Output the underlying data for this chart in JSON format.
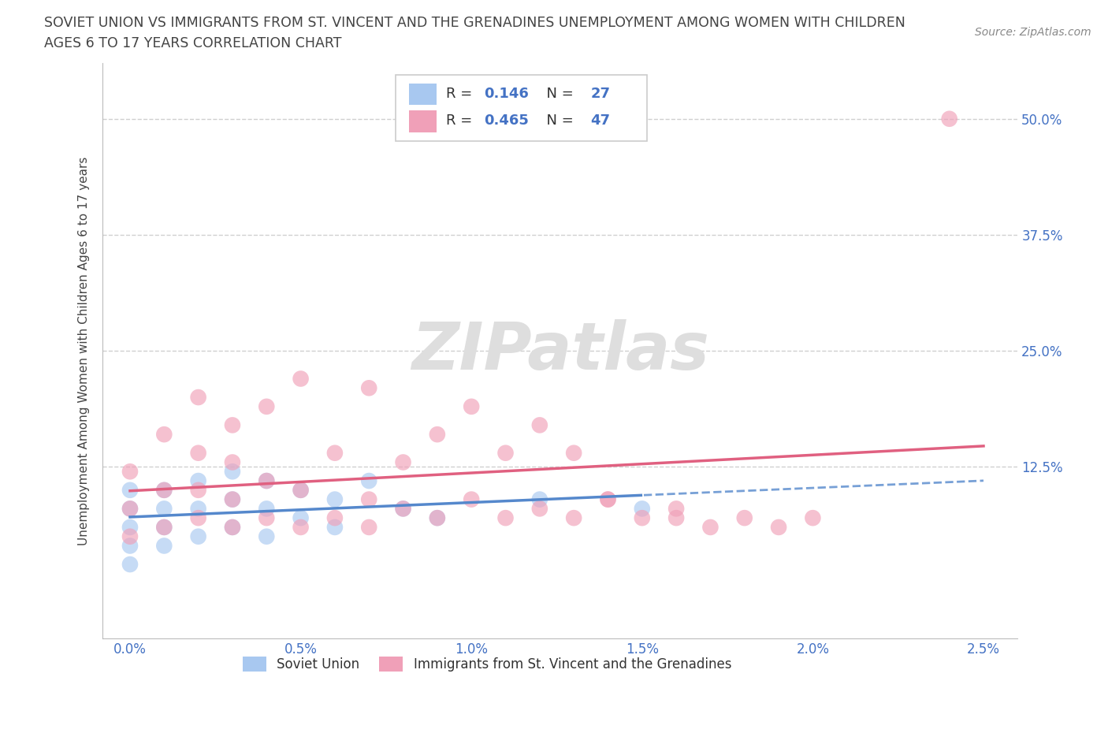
{
  "title_line1": "SOVIET UNION VS IMMIGRANTS FROM ST. VINCENT AND THE GRENADINES UNEMPLOYMENT AMONG WOMEN WITH CHILDREN",
  "title_line2": "AGES 6 TO 17 YEARS CORRELATION CHART",
  "source": "Source: ZipAtlas.com",
  "ylabel": "Unemployment Among Women with Children Ages 6 to 17 years",
  "series": [
    {
      "name": "Soviet Union",
      "R": 0.146,
      "N": 27,
      "color": "#a8c8f0",
      "line_style": "solid_then_dashed",
      "line_color": "#5588cc",
      "x": [
        0.0,
        0.0,
        0.0,
        0.0,
        0.0,
        0.001,
        0.001,
        0.001,
        0.001,
        0.002,
        0.002,
        0.002,
        0.003,
        0.003,
        0.003,
        0.004,
        0.004,
        0.004,
        0.005,
        0.005,
        0.006,
        0.006,
        0.007,
        0.008,
        0.009,
        0.012,
        0.015
      ],
      "y": [
        0.02,
        0.04,
        0.06,
        0.08,
        0.1,
        0.04,
        0.06,
        0.08,
        0.1,
        0.05,
        0.08,
        0.11,
        0.06,
        0.09,
        0.12,
        0.05,
        0.08,
        0.11,
        0.07,
        0.1,
        0.06,
        0.09,
        0.11,
        0.08,
        0.07,
        0.09,
        0.08
      ]
    },
    {
      "name": "Immigrants from St. Vincent and the Grenadines",
      "R": 0.465,
      "N": 47,
      "color": "#f0a0b8",
      "line_style": "solid",
      "line_color": "#e06080",
      "x": [
        0.0,
        0.0,
        0.0,
        0.001,
        0.001,
        0.001,
        0.002,
        0.002,
        0.002,
        0.002,
        0.003,
        0.003,
        0.003,
        0.003,
        0.004,
        0.004,
        0.004,
        0.005,
        0.005,
        0.005,
        0.006,
        0.006,
        0.007,
        0.007,
        0.007,
        0.008,
        0.008,
        0.009,
        0.009,
        0.01,
        0.01,
        0.011,
        0.011,
        0.012,
        0.012,
        0.013,
        0.013,
        0.014,
        0.014,
        0.015,
        0.016,
        0.016,
        0.017,
        0.018,
        0.019,
        0.02,
        0.024
      ],
      "y": [
        0.05,
        0.08,
        0.12,
        0.06,
        0.1,
        0.16,
        0.07,
        0.1,
        0.14,
        0.2,
        0.06,
        0.09,
        0.13,
        0.17,
        0.07,
        0.11,
        0.19,
        0.06,
        0.1,
        0.22,
        0.07,
        0.14,
        0.06,
        0.09,
        0.21,
        0.08,
        0.13,
        0.07,
        0.16,
        0.09,
        0.19,
        0.07,
        0.14,
        0.08,
        0.17,
        0.07,
        0.14,
        0.09,
        0.09,
        0.07,
        0.08,
        0.07,
        0.06,
        0.07,
        0.06,
        0.07,
        0.5
      ]
    }
  ],
  "xlim": [
    -0.0008,
    0.026
  ],
  "ylim": [
    -0.06,
    0.56
  ],
  "xticks": [
    0.0,
    0.005,
    0.01,
    0.015,
    0.02,
    0.025
  ],
  "xticklabels": [
    "0.0%",
    "0.5%",
    "1.0%",
    "1.5%",
    "2.0%",
    "2.5%"
  ],
  "ytick_vals": [
    0.0,
    0.125,
    0.25,
    0.375,
    0.5
  ],
  "yticklabels_right": [
    "",
    "12.5%",
    "25.0%",
    "37.5%",
    "50.0%"
  ],
  "grid_color": "#d0d0d0",
  "background_color": "#ffffff",
  "watermark": "ZIPatlas",
  "title_color": "#444444",
  "tick_color": "#4472c4",
  "marker_size": 220,
  "marker_alpha": 0.65
}
